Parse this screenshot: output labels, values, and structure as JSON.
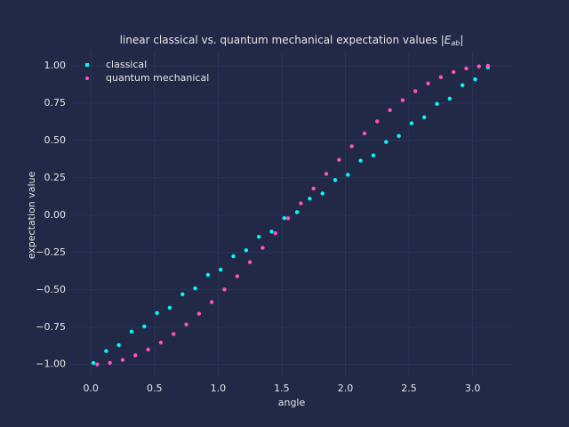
{
  "chart_data": {
    "type": "scatter",
    "title": {
      "text": "linear classical vs. quantum mechanical expectation values ",
      "math_base": "|E",
      "math_sub": "ab",
      "math_end": "|"
    },
    "x_label": "angle",
    "y_label": "expectation value",
    "xlim": [
      -0.155,
      3.31
    ],
    "ylim": [
      -1.085,
      1.095
    ],
    "xticks": [
      {
        "value": 0,
        "label": "0.0"
      },
      {
        "value": 0.5,
        "label": "0.5"
      },
      {
        "value": 1,
        "label": "1.0"
      },
      {
        "value": 1.5,
        "label": "1.5"
      },
      {
        "value": 2,
        "label": "2.0"
      },
      {
        "value": 2.5,
        "label": "2.5"
      },
      {
        "value": 3,
        "label": "3.0"
      }
    ],
    "yticks": [
      {
        "value": -1,
        "label": "−1.00"
      },
      {
        "value": -0.75,
        "label": "−0.75"
      },
      {
        "value": -0.5,
        "label": "−0.50"
      },
      {
        "value": -0.25,
        "label": "−0.25"
      },
      {
        "value": 0,
        "label": "0.00"
      },
      {
        "value": 0.25,
        "label": "0.25"
      },
      {
        "value": 0.5,
        "label": "0.50"
      },
      {
        "value": 0.75,
        "label": "0.75"
      },
      {
        "value": 1,
        "label": "1.00"
      }
    ],
    "grid": true,
    "legend": "upper left",
    "series": [
      {
        "name": "classical",
        "color": "#08F7FE",
        "x": [
          0.02,
          0.12,
          0.22,
          0.32,
          0.42,
          0.52,
          0.62,
          0.72,
          0.82,
          0.92,
          1.02,
          1.12,
          1.22,
          1.32,
          1.42,
          1.52,
          1.62,
          1.72,
          1.82,
          1.92,
          2.02,
          2.12,
          2.22,
          2.32,
          2.42,
          2.52,
          2.62,
          2.72,
          2.82,
          2.92,
          3.02,
          3.12
        ],
        "values": [
          -0.99,
          -0.91,
          -0.87,
          -0.78,
          -0.745,
          -0.655,
          -0.62,
          -0.53,
          -0.49,
          -0.4,
          -0.365,
          -0.275,
          -0.235,
          -0.145,
          -0.11,
          -0.02,
          0.02,
          0.11,
          0.145,
          0.235,
          0.27,
          0.365,
          0.4,
          0.49,
          0.53,
          0.615,
          0.655,
          0.745,
          0.78,
          0.87,
          0.91,
          0.99
        ]
      },
      {
        "name": "quantum mechanical",
        "color": "#FE53BB",
        "x": [
          0.05,
          0.15,
          0.25,
          0.35,
          0.45,
          0.55,
          0.65,
          0.75,
          0.85,
          0.95,
          1.05,
          1.15,
          1.25,
          1.35,
          1.45,
          1.55,
          1.65,
          1.75,
          1.85,
          1.95,
          2.05,
          2.15,
          2.25,
          2.35,
          2.45,
          2.55,
          2.65,
          2.75,
          2.85,
          2.95,
          3.05,
          3.12
        ],
        "values": [
          -0.999,
          -0.989,
          -0.969,
          -0.939,
          -0.9,
          -0.853,
          -0.796,
          -0.732,
          -0.66,
          -0.582,
          -0.498,
          -0.409,
          -0.315,
          -0.219,
          -0.121,
          -0.021,
          0.079,
          0.178,
          0.276,
          0.37,
          0.461,
          0.547,
          0.628,
          0.703,
          0.77,
          0.83,
          0.882,
          0.924,
          0.958,
          0.982,
          0.996,
          1.0
        ]
      }
    ]
  }
}
